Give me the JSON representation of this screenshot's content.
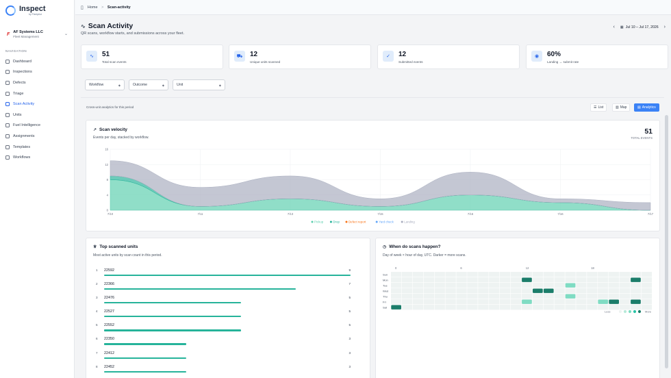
{
  "brand": {
    "name": "Inspect",
    "sub": "by Fleetpilot"
  },
  "org": {
    "name": "AF Systems LLC",
    "sub": "Fleet Management"
  },
  "nav": {
    "heading": "NAVIGATION",
    "items": [
      {
        "label": "Dashboard",
        "icon": "dashboard-icon",
        "active": false
      },
      {
        "label": "Inspections",
        "icon": "clipboard-icon",
        "active": false
      },
      {
        "label": "Defects",
        "icon": "alert-icon",
        "active": false
      },
      {
        "label": "Triage",
        "icon": "triage-icon",
        "active": false
      },
      {
        "label": "Scan Activity",
        "icon": "activity-icon",
        "active": true
      },
      {
        "label": "Units",
        "icon": "truck-icon",
        "active": false
      },
      {
        "label": "Fuel Intelligence",
        "icon": "fuel-icon",
        "active": false
      },
      {
        "label": "Assignments",
        "icon": "assignments-icon",
        "active": false
      },
      {
        "label": "Templates",
        "icon": "template-icon",
        "active": false
      },
      {
        "label": "Workflows",
        "icon": "workflow-icon",
        "active": false
      }
    ]
  },
  "breadcrumb": {
    "home": "Home",
    "sep": ">",
    "current": "Scan-activity"
  },
  "page": {
    "title": "Scan Activity",
    "subtitle": "QR scans, workflow starts, and submissions across your fleet.",
    "date_range": "Jul 10 – Jul 17, 2026"
  },
  "stats": [
    {
      "value": "51",
      "label": "Total scan events",
      "icon": "activity-icon"
    },
    {
      "value": "12",
      "label": "Unique units scanned",
      "icon": "truck-icon"
    },
    {
      "value": "12",
      "label": "Submitted events",
      "icon": "check-circle-icon"
    },
    {
      "value": "60%",
      "label": "Landing → submit rate",
      "icon": "eye-icon"
    }
  ],
  "filters": {
    "workflow": "Workflow",
    "outcome": "Outcome",
    "unit": "Unit"
  },
  "panel": {
    "label": "Cross-unit analytics for this period"
  },
  "view_toggle": {
    "list": "List",
    "map": "Map",
    "analytics": "Analytics",
    "active": "analytics"
  },
  "velocity": {
    "title": "Scan velocity",
    "subtitle": "Events per day, stacked by workflow.",
    "total": "51",
    "total_label": "TOTAL EVENTS"
  },
  "chart_data": {
    "type": "area",
    "stacked": true,
    "x": [
      "7/10",
      "7/11",
      "7/13",
      "7/15",
      "7/16",
      "7/16",
      "7/17"
    ],
    "ylim": [
      0,
      16
    ],
    "yticks": [
      "0",
      "4",
      "8",
      "12",
      "16"
    ],
    "series": [
      {
        "name": "Pickup",
        "color": "#5ccfae",
        "values": [
          8,
          1,
          3,
          1,
          4,
          2,
          0
        ]
      },
      {
        "name": "Drop",
        "color": "#26b39a",
        "values": [
          1,
          0,
          0,
          0,
          0,
          0,
          0
        ]
      },
      {
        "name": "Defect report",
        "color": "#f97316",
        "values": [
          0,
          0,
          0,
          0,
          0,
          0,
          0
        ]
      },
      {
        "name": "Yard check",
        "color": "#60a5fa",
        "values": [
          0,
          0,
          0,
          0,
          0,
          0,
          0
        ]
      },
      {
        "name": "Landing",
        "color": "#a8adbe",
        "values": [
          4,
          5,
          6,
          2,
          6,
          1,
          2
        ]
      }
    ],
    "legend": "bottom"
  },
  "top_units": {
    "title": "Top scanned units",
    "subtitle": "Most active units by scan count in this period.",
    "max": 9,
    "rows": [
      {
        "rank": "1",
        "unit": "22592",
        "count": 9
      },
      {
        "rank": "2",
        "unit": "22366",
        "count": 7
      },
      {
        "rank": "3",
        "unit": "22476",
        "count": 5
      },
      {
        "rank": "4",
        "unit": "22527",
        "count": 5
      },
      {
        "rank": "5",
        "unit": "22552",
        "count": 5
      },
      {
        "rank": "6",
        "unit": "22350",
        "count": 3
      },
      {
        "rank": "7",
        "unit": "22412",
        "count": 3
      },
      {
        "rank": "8",
        "unit": "22452",
        "count": 3
      }
    ]
  },
  "heatmap": {
    "title": "When do scans happen?",
    "subtitle": "Day of week × hour of day, UTC. Darker = more scans.",
    "days": [
      "Sun",
      "Mon",
      "Tue",
      "Wed",
      "Thu",
      "Fri",
      "Sat"
    ],
    "hour_ticks": [
      "0",
      "6",
      "12",
      "18"
    ],
    "cells": [
      {
        "day": 1,
        "hour": 12,
        "level": 4
      },
      {
        "day": 1,
        "hour": 22,
        "level": 4
      },
      {
        "day": 2,
        "hour": 16,
        "level": 2
      },
      {
        "day": 3,
        "hour": 13,
        "level": 4
      },
      {
        "day": 3,
        "hour": 14,
        "level": 4
      },
      {
        "day": 4,
        "hour": 16,
        "level": 2
      },
      {
        "day": 5,
        "hour": 12,
        "level": 2
      },
      {
        "day": 5,
        "hour": 19,
        "level": 2
      },
      {
        "day": 5,
        "hour": 20,
        "level": 4
      },
      {
        "day": 5,
        "hour": 22,
        "level": 4
      },
      {
        "day": 6,
        "hour": 0,
        "level": 4
      }
    ],
    "legend_less": "Less",
    "legend_more": "More"
  }
}
